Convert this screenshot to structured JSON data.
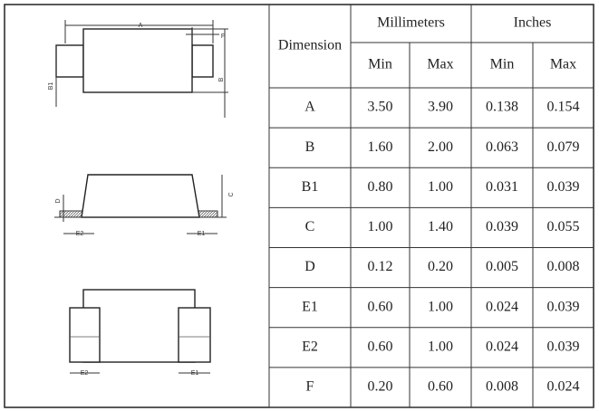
{
  "diagram": {
    "labels": [
      "A",
      "F",
      "B1",
      "B",
      "D",
      "C",
      "E2",
      "E1",
      "E2",
      "E1"
    ]
  },
  "table": {
    "header": "Dimension",
    "groups": [
      "Millimeters",
      "Inches"
    ],
    "subheaders": [
      "Min",
      "Max",
      "Min",
      "Max"
    ],
    "rows": [
      [
        "A",
        "3.50",
        "3.90",
        "0.138",
        "0.154"
      ],
      [
        "B",
        "1.60",
        "2.00",
        "0.063",
        "0.079"
      ],
      [
        "B1",
        "0.80",
        "1.00",
        "0.031",
        "0.039"
      ],
      [
        "C",
        "1.00",
        "1.40",
        "0.039",
        "0.055"
      ],
      [
        "D",
        "0.12",
        "0.20",
        "0.005",
        "0.008"
      ],
      [
        "E1",
        "0.60",
        "1.00",
        "0.024",
        "0.039"
      ],
      [
        "E2",
        "0.60",
        "1.00",
        "0.024",
        "0.039"
      ],
      [
        "F",
        "0.20",
        "0.60",
        "0.008",
        "0.024"
      ]
    ]
  }
}
